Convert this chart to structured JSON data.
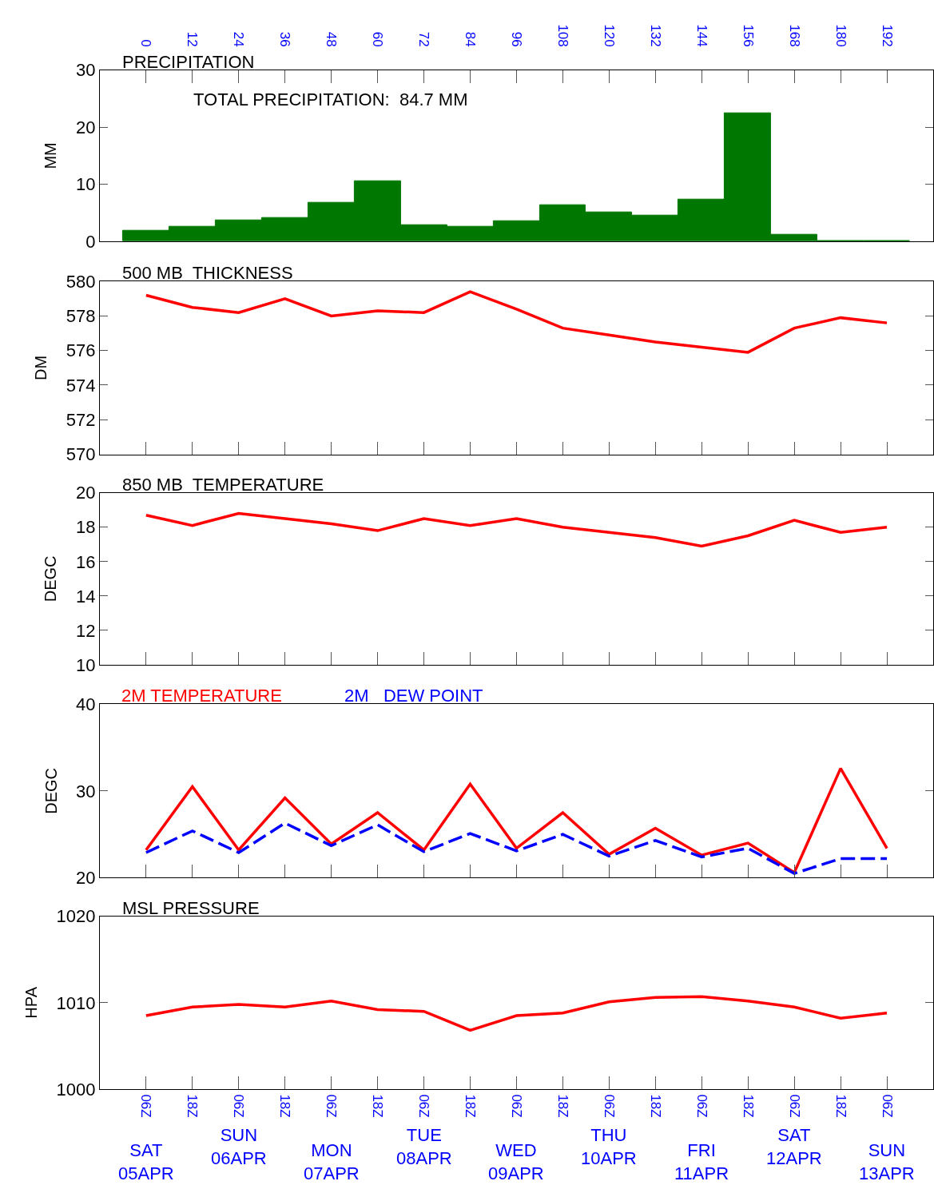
{
  "chart_data": [
    {
      "type": "histogram",
      "title": "PRECIPITATION",
      "ylabel": "MM",
      "annotations": [
        "TOTAL PRECIPITATION:  84.7 MM"
      ],
      "bins": [
        -6,
        6,
        18,
        30,
        42,
        54,
        66,
        78,
        90,
        102,
        114,
        126,
        138,
        150,
        162,
        174,
        186,
        198
      ],
      "values": [
        1.9,
        2.6,
        3.7,
        4.1,
        6.7,
        10.5,
        2.9,
        2.6,
        3.6,
        6.3,
        5.1,
        4.5,
        7.3,
        22.4,
        1.2,
        0,
        0
      ],
      "color": "#007700",
      "xlim": [
        -12,
        204
      ],
      "xticks": [
        0,
        12,
        24,
        36,
        48,
        60,
        72,
        84,
        96,
        108,
        120,
        132,
        144,
        156,
        168,
        180,
        192
      ],
      "ylim": [
        0,
        30
      ],
      "yticks": [
        0,
        10,
        20,
        30
      ],
      "legend": false
    },
    {
      "type": "line",
      "title": "500 MB  THICKNESS",
      "ylabel": "DM",
      "x": [
        0,
        12,
        24,
        36,
        48,
        60,
        72,
        84,
        96,
        108,
        120,
        132,
        144,
        156,
        168,
        180,
        192
      ],
      "series": [
        {
          "color": "#ff0000",
          "values": [
            579.2,
            578.5,
            578.2,
            579.0,
            578.0,
            578.3,
            578.2,
            579.4,
            578.4,
            577.3,
            576.9,
            576.5,
            576.2,
            575.9,
            577.3,
            577.9,
            577.6
          ]
        }
      ],
      "xlim": [
        -12,
        204
      ],
      "ylim": [
        570,
        580
      ],
      "yticks": [
        570,
        572,
        574,
        576,
        578,
        580
      ],
      "tick_labels": "y",
      "legend": false
    },
    {
      "type": "line",
      "title": "850 MB  TEMPERATURE",
      "ylabel": "DEGC",
      "x": [
        0,
        12,
        24,
        36,
        48,
        60,
        72,
        84,
        96,
        108,
        120,
        132,
        144,
        156,
        168,
        180,
        192
      ],
      "series": [
        {
          "color": "#ff0000",
          "values": [
            18.7,
            18.1,
            18.8,
            18.5,
            18.2,
            17.8,
            18.5,
            18.1,
            18.5,
            18.0,
            17.7,
            17.4,
            16.9,
            17.5,
            18.4,
            17.7,
            18.0
          ]
        }
      ],
      "xlim": [
        -12,
        204
      ],
      "ylim": [
        10,
        20
      ],
      "yticks": [
        10,
        12,
        14,
        16,
        18,
        20
      ],
      "tick_labels": "y",
      "legend": false
    },
    {
      "type": "line",
      "ylabel": "DEGC",
      "x": [
        0,
        12,
        24,
        36,
        48,
        60,
        72,
        84,
        96,
        108,
        120,
        132,
        144,
        156,
        168,
        180,
        192
      ],
      "series": [
        {
          "name": "2M TEMPERATURE",
          "color": "#ff0000",
          "line_style": "solid",
          "values": [
            23.2,
            30.5,
            23.2,
            29.2,
            23.9,
            27.5,
            23.2,
            30.8,
            23.4,
            27.5,
            22.7,
            25.7,
            22.6,
            24.0,
            20.6,
            32.6,
            23.4
          ]
        },
        {
          "name": "2M   DEW POINT",
          "color": "#0000ff",
          "line_style": "dashed",
          "values": [
            22.9,
            25.4,
            22.9,
            26.3,
            23.7,
            26.1,
            23.0,
            25.1,
            23.1,
            25.0,
            22.5,
            24.3,
            22.4,
            23.4,
            20.5,
            22.2,
            22.2
          ]
        }
      ],
      "xlim": [
        -12,
        204
      ],
      "ylim": [
        20,
        40
      ],
      "yticks": [
        20,
        30,
        40
      ],
      "tick_labels": "y",
      "legend": false
    },
    {
      "type": "line",
      "title": "MSL PRESSURE",
      "ylabel": "HPA",
      "series": [
        {
          "color": "#ff0000",
          "values": [
            1008.5,
            1009.5,
            1009.8,
            1009.5,
            1010.2,
            1009.2,
            1009.0,
            1006.8,
            1008.5,
            1008.8,
            1010.1,
            1010.6,
            1010.7,
            1010.2,
            1009.5,
            1008.2,
            1008.8
          ]
        }
      ],
      "annotations": [
        "SAT 05APR",
        "SUN 06APR",
        "MON 07APR",
        "TUE 08APR",
        "WED 09APR",
        "THU 10APR",
        "FRI 11APR",
        "SAT 12APR",
        "SUN 13APR"
      ],
      "categories": [
        "06Z",
        "18Z",
        "06Z",
        "18Z",
        "06Z",
        "18Z",
        "06Z",
        "18Z",
        "06Z",
        "18Z",
        "06Z",
        "18Z",
        "06Z",
        "18Z",
        "06Z",
        "18Z",
        "06Z"
      ],
      "ylim": [
        1000,
        1020
      ],
      "yticks": [
        1000,
        1010,
        1020
      ],
      "legend": false
    }
  ]
}
